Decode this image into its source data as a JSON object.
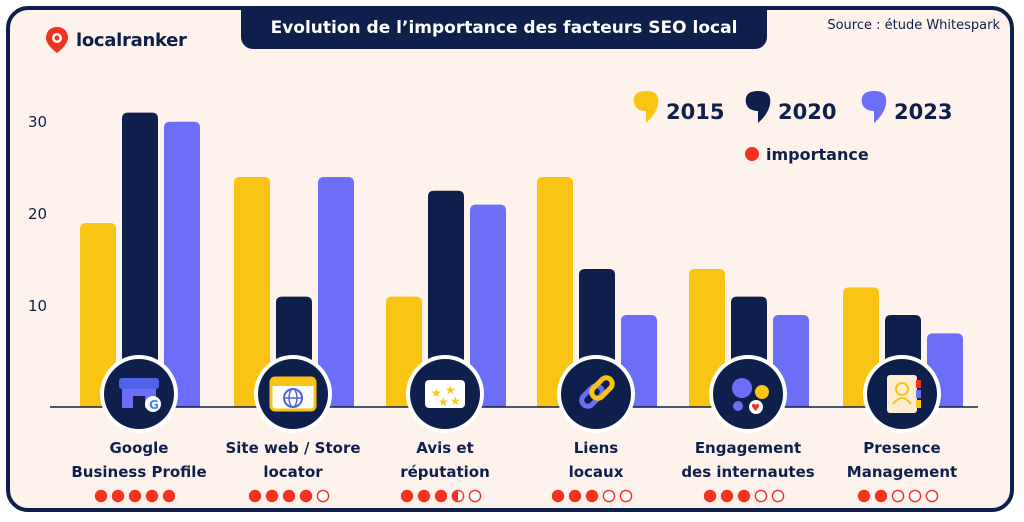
{
  "logo": {
    "text": "localranker",
    "icon": "map-pin-icon"
  },
  "title": "Evolution de l’importance des facteurs SEO local",
  "source": "Source :  étude Whitespark",
  "colors": {
    "navy": "#0f1f4b",
    "y2015": "#f9c413",
    "y2020": "#0f1f4b",
    "y2023": "#6d6ef8",
    "dot": "#f3321f",
    "background": "#fdf3ec"
  },
  "legend": {
    "importance_label": "importance"
  },
  "chart_data": {
    "type": "bar",
    "title": "Evolution de l’importance des facteurs SEO local",
    "categories": [
      [
        "Google",
        "Business Profile"
      ],
      [
        "Site web / Store",
        "locator"
      ],
      [
        "Avis et",
        "réputation"
      ],
      [
        "Liens",
        "locaux"
      ],
      [
        "Engagement",
        "des internautes"
      ],
      [
        "Presence",
        "Management"
      ]
    ],
    "series": [
      {
        "name": "2015",
        "values": [
          20,
          25,
          12,
          25,
          15,
          13
        ]
      },
      {
        "name": "2020",
        "values": [
          32,
          12,
          23.5,
          15,
          12,
          10
        ]
      },
      {
        "name": "2023",
        "values": [
          31,
          25,
          22,
          10,
          10,
          8
        ]
      }
    ],
    "yticks": [
      10,
      20,
      30
    ],
    "ylim": [
      0,
      35
    ],
    "importance": [
      5,
      4,
      3.5,
      3,
      3,
      2
    ],
    "importance_max": 5,
    "category_icons": [
      "storefront-icon",
      "browser-globe-icon",
      "star-review-icon",
      "chain-link-icon",
      "social-engagement-icon",
      "contact-book-icon"
    ],
    "legend_position": "top-right"
  }
}
